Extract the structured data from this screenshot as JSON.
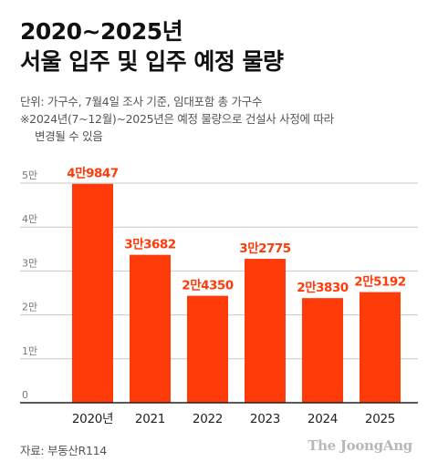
{
  "header": {
    "title_line1": "2020~2025년",
    "title_line2": "서울 입주 및 입주 예정 물량"
  },
  "notes": {
    "line1": "단위: 가구수, 7월4일 조사 기준, 임대포함 총 가구수",
    "line2": "※2024년(7~12월)~2025년은 예정 물량으로 건설사 사정에 따라",
    "line3": "변경될 수 있음"
  },
  "footer": {
    "source": "자료: 부동산R114",
    "brand": "The JoongAng"
  },
  "chart_data": {
    "type": "bar",
    "categories": [
      "2020년",
      "2021",
      "2022",
      "2023",
      "2024",
      "2025"
    ],
    "values": [
      49847,
      33682,
      24350,
      32775,
      23830,
      25192
    ],
    "data_labels": [
      "4만9847",
      "3만3682",
      "2만4350",
      "3만2775",
      "2만3830",
      "2만5192"
    ],
    "yticks": [
      0,
      10000,
      20000,
      30000,
      40000,
      50000
    ],
    "ytick_labels": [
      "0",
      "1만",
      "2만",
      "3만",
      "4만",
      "5만"
    ],
    "ylim": [
      0,
      50000
    ],
    "grid": true,
    "colors": {
      "bar": "#ff3b0a",
      "label": "#ff3b0a",
      "grid": "#c8c8c8",
      "axis": "#222222",
      "tick_text": "#777777"
    }
  }
}
